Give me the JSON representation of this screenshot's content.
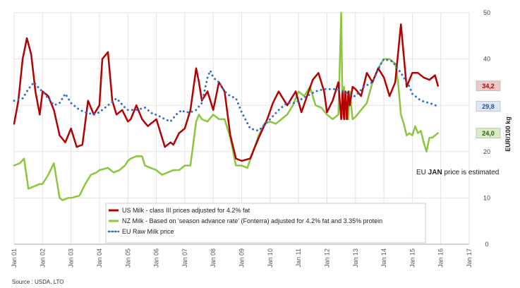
{
  "chart_data": {
    "type": "line",
    "title": "",
    "xlabel": "",
    "ylabel": "EUR/100 kg",
    "ylim": [
      0,
      50
    ],
    "y_ticks": [
      "0",
      "10",
      "20",
      "30",
      "40",
      "50"
    ],
    "x_ticks": [
      "Jan 01",
      "Jan 02",
      "Jan 03",
      "Jan 04",
      "Jan 05",
      "Jan 06",
      "Jan 07",
      "Jan 08",
      "Jan 09",
      "Jan 10",
      "Jan 11",
      "Jan 12",
      "Jan 13",
      "Jan 14",
      "Jan 15",
      "Jan 16",
      "Jan 17"
    ],
    "grid": true,
    "legend_position": "bottom-center",
    "series": [
      {
        "name": "US Milk - class III prices adjusted for 4.2% fat",
        "color": "#b30000",
        "style": "solid",
        "end_label": "34,2",
        "x": [
          2001.0,
          2001.15,
          2001.3,
          2001.45,
          2001.6,
          2001.75,
          2001.9,
          2002.0,
          2002.2,
          2002.4,
          2002.6,
          2002.8,
          2003.0,
          2003.2,
          2003.4,
          2003.6,
          2003.8,
          2004.0,
          2004.1,
          2004.3,
          2004.45,
          2004.6,
          2004.8,
          2005.0,
          2005.1,
          2005.3,
          2005.5,
          2005.7,
          2006.0,
          2006.3,
          2006.5,
          2006.6,
          2006.8,
          2007.0,
          2007.2,
          2007.4,
          2007.5,
          2007.6,
          2007.8,
          2008.0,
          2008.2,
          2008.4,
          2008.6,
          2008.8,
          2009.0,
          2009.3,
          2009.6,
          2009.9,
          2010.1,
          2010.3,
          2010.6,
          2010.9,
          2011.1,
          2011.3,
          2011.5,
          2011.7,
          2011.9,
          2012.0,
          2012.2,
          2012.4,
          2012.5,
          2012.55,
          2012.6,
          2012.65,
          2012.7,
          2012.75,
          2012.8,
          2012.9,
          2013.0,
          2013.2,
          2013.4,
          2013.6,
          2013.8,
          2014.0,
          2014.2,
          2014.4,
          2014.6,
          2014.8,
          2015.0,
          2015.2,
          2015.4,
          2015.6,
          2015.8,
          2015.9
        ],
        "y": [
          26,
          31,
          40,
          44.5,
          41,
          33,
          28,
          33,
          32,
          29,
          23.5,
          22,
          25,
          21,
          21.5,
          31,
          28,
          30,
          40,
          41.5,
          31,
          28,
          29,
          26.5,
          27,
          30,
          27,
          25.5,
          27,
          21,
          22,
          21.5,
          24,
          25,
          29,
          38,
          35,
          31,
          33,
          29,
          35,
          33,
          23.5,
          18.5,
          18,
          18.5,
          23,
          27,
          30.5,
          33,
          30,
          33,
          28.5,
          32,
          35.5,
          37,
          33,
          28.5,
          31,
          35,
          27,
          33,
          27,
          33,
          27,
          33,
          30,
          34,
          33.5,
          32,
          37,
          35,
          38,
          36,
          32,
          35,
          47.5,
          34,
          37,
          37,
          36,
          35.5,
          36.5,
          34.2
        ]
      },
      {
        "name": "NZ Milk - Based on 'season advance rate' (Fonterra) adjusted for 4.2% fat and 3.35% protein",
        "color": "#8cc63f",
        "style": "solid",
        "end_label": "24,0",
        "x": [
          2001.0,
          2001.2,
          2001.35,
          2001.5,
          2001.7,
          2001.9,
          2002.0,
          2002.2,
          2002.4,
          2002.6,
          2002.7,
          2002.9,
          2003.0,
          2003.3,
          2003.5,
          2003.7,
          2003.9,
          2004.0,
          2004.3,
          2004.5,
          2004.7,
          2004.9,
          2005.0,
          2005.1,
          2005.3,
          2005.5,
          2005.6,
          2005.8,
          2006.0,
          2006.2,
          2006.4,
          2006.6,
          2006.8,
          2007.0,
          2007.2,
          2007.4,
          2007.5,
          2007.6,
          2007.8,
          2008.0,
          2008.2,
          2008.4,
          2008.6,
          2008.8,
          2009.0,
          2009.2,
          2009.4,
          2009.6,
          2009.8,
          2010.0,
          2010.2,
          2010.4,
          2010.6,
          2010.8,
          2011.0,
          2011.2,
          2011.4,
          2011.6,
          2011.8,
          2012.0,
          2012.2,
          2012.4,
          2012.5,
          2012.55,
          2012.6,
          2012.65,
          2012.7,
          2012.75,
          2012.8,
          2012.9,
          2013.0,
          2013.2,
          2013.4,
          2013.6,
          2013.8,
          2014.0,
          2014.2,
          2014.4,
          2014.5,
          2014.6,
          2014.7,
          2014.8,
          2014.9,
          2015.0,
          2015.1,
          2015.2,
          2015.3,
          2015.4,
          2015.5,
          2015.6,
          2015.7,
          2015.8,
          2015.9
        ],
        "y": [
          17,
          17.5,
          18.5,
          12,
          12.5,
          13,
          13,
          15,
          17.5,
          10,
          9.5,
          10,
          10,
          10.5,
          13,
          15,
          15.5,
          16,
          16.5,
          15.5,
          16,
          17,
          18,
          18.5,
          19,
          19,
          17,
          16.5,
          16,
          15,
          15.5,
          16,
          16,
          17,
          17,
          26.5,
          28,
          27,
          26.5,
          28,
          27,
          27,
          23,
          17,
          17,
          16.5,
          20,
          23.5,
          26,
          26.5,
          26,
          27,
          28,
          30,
          33,
          32,
          34,
          30,
          29.5,
          28,
          27,
          28,
          50,
          28,
          34,
          27,
          30,
          27,
          33,
          27,
          27.5,
          29,
          30.5,
          35,
          38,
          40,
          40,
          39,
          35,
          28,
          26,
          23.5,
          24,
          23.5,
          25.5,
          24,
          24.5,
          22,
          20,
          23,
          23,
          23.5,
          24
        ]
      },
      {
        "name": "EU Raw Milk price",
        "color": "#2f6fd0",
        "style": "dotted",
        "end_label": "29,8",
        "x": [
          2001.0,
          2001.3,
          2001.5,
          2001.7,
          2001.9,
          2002.0,
          2002.2,
          2002.4,
          2002.6,
          2002.8,
          2003.0,
          2003.3,
          2003.5,
          2003.8,
          2004.0,
          2004.3,
          2004.6,
          2004.9,
          2005.0,
          2005.3,
          2005.6,
          2005.9,
          2006.0,
          2006.3,
          2006.5,
          2006.7,
          2006.9,
          2007.0,
          2007.2,
          2007.4,
          2007.6,
          2007.8,
          2007.9,
          2008.0,
          2008.2,
          2008.4,
          2008.6,
          2008.8,
          2009.0,
          2009.3,
          2009.6,
          2009.9,
          2010.0,
          2010.3,
          2010.6,
          2010.9,
          2011.0,
          2011.3,
          2011.6,
          2011.9,
          2012.0,
          2012.3,
          2012.6,
          2012.9,
          2013.0,
          2013.3,
          2013.6,
          2013.9,
          2014.0,
          2014.3,
          2014.6,
          2014.9,
          2015.0,
          2015.3,
          2015.6,
          2015.9
        ],
        "y": [
          31,
          31.5,
          33.5,
          35,
          33.5,
          33,
          31.5,
          30,
          30.5,
          32.5,
          30.5,
          29,
          28.5,
          28,
          28.5,
          30,
          31.5,
          29.5,
          29,
          29,
          29.5,
          28,
          28,
          27,
          26.5,
          28,
          29,
          28.5,
          28.5,
          29,
          30.5,
          36,
          37.5,
          36,
          35,
          33,
          32,
          31.5,
          28.5,
          25,
          24.5,
          26.5,
          27,
          29,
          30.5,
          30.5,
          31,
          32,
          33,
          33.5,
          33.5,
          33.5,
          33,
          32,
          32,
          34,
          35,
          39,
          40,
          39.5,
          37,
          34,
          32.5,
          31,
          30.5,
          29.8
        ]
      }
    ],
    "annotation": {
      "pre": "EU ",
      "bold": "JAN",
      "post": " price is estimated"
    },
    "source": "Source : USDA, LTO"
  }
}
